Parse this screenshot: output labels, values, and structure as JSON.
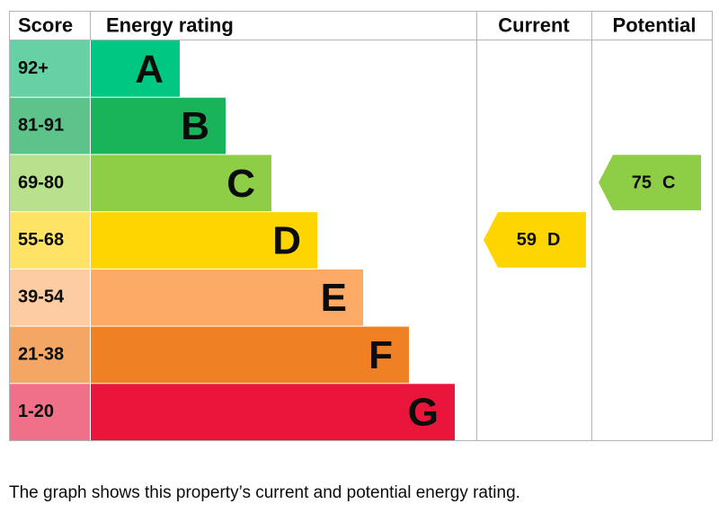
{
  "header": {
    "score": "Score",
    "rating": "Energy rating",
    "current": "Current",
    "potential": "Potential"
  },
  "bands": [
    {
      "score": "92+",
      "letter": "A",
      "color": "#00c781",
      "score_color": "#66d1a2"
    },
    {
      "score": "81-91",
      "letter": "B",
      "color": "#19b459",
      "score_color": "#5ec28b"
    },
    {
      "score": "69-80",
      "letter": "C",
      "color": "#8dce46",
      "score_color": "#b9e08c"
    },
    {
      "score": "55-68",
      "letter": "D",
      "color": "#ffd500",
      "score_color": "#ffe366"
    },
    {
      "score": "39-54",
      "letter": "E",
      "color": "#fcaa65",
      "score_color": "#fdcca3"
    },
    {
      "score": "21-38",
      "letter": "F",
      "color": "#ef8023",
      "score_color": "#f4a765"
    },
    {
      "score": "1-20",
      "letter": "G",
      "color": "#e9153b",
      "score_color": "#f07089"
    }
  ],
  "current": {
    "score": "59",
    "letter": "D"
  },
  "potential": {
    "score": "75",
    "letter": "C"
  },
  "caption": "The graph shows this property’s current and potential energy rating."
}
